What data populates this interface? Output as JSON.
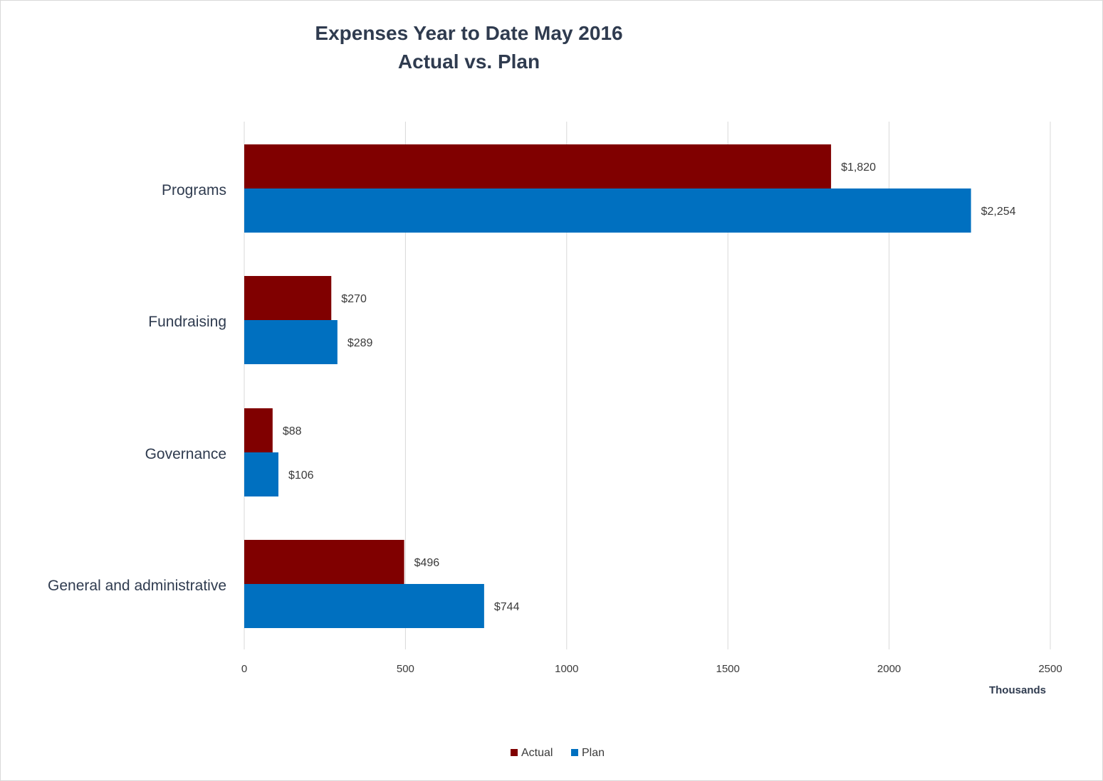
{
  "chart_data": {
    "type": "bar",
    "orientation": "horizontal",
    "title": "Expenses Year to Date May 2016",
    "subtitle": "Actual vs. Plan",
    "categories": [
      "Programs",
      "Fundraising",
      "Governance",
      "General and administrative"
    ],
    "series": [
      {
        "name": "Actual",
        "color": "#800000",
        "values": [
          1820,
          270,
          88,
          496
        ],
        "labels": [
          "$1,820",
          "$270",
          "$88",
          "$496"
        ]
      },
      {
        "name": "Plan",
        "color": "#0070c0",
        "values": [
          2254,
          289,
          106,
          744
        ],
        "labels": [
          "$2,254",
          "$289",
          "$106",
          "$744"
        ]
      }
    ],
    "xlabel": "Thousands",
    "xlim": [
      0,
      2500
    ],
    "xticks": [
      0,
      500,
      1000,
      1500,
      2000,
      2500
    ],
    "grid": true,
    "legend": "bottom"
  }
}
